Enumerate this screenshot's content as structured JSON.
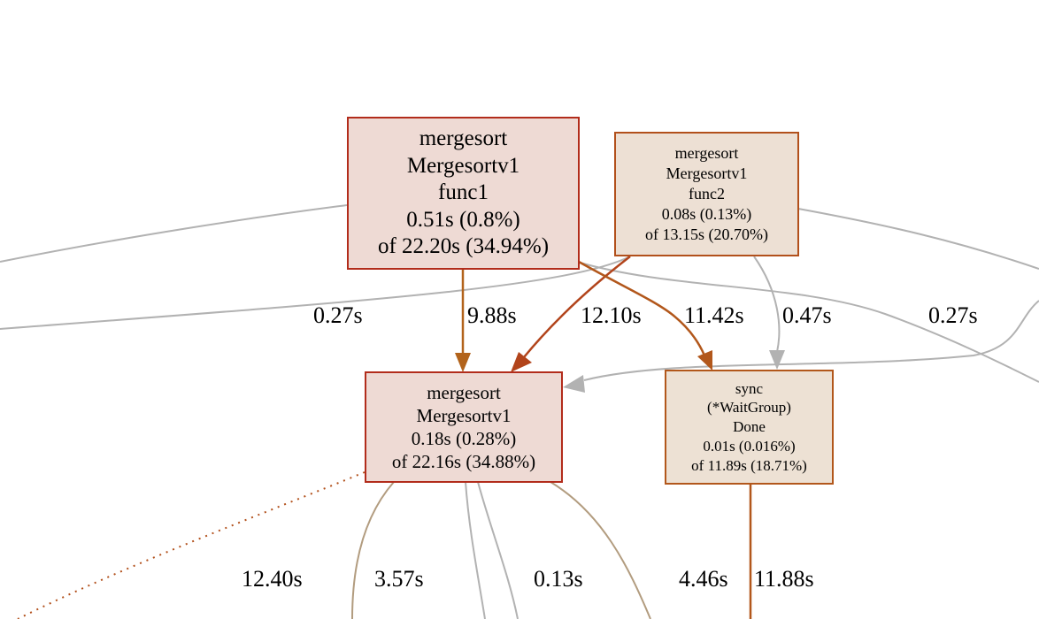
{
  "nodes": {
    "func1": {
      "lines": [
        "mergesort",
        "Mergesortv1",
        "func1",
        "0.51s (0.8%)",
        "of 22.20s (34.94%)"
      ],
      "fill": "#eedad4",
      "stroke": "#b22c1b"
    },
    "func2": {
      "lines": [
        "mergesort",
        "Mergesortv1",
        "func2",
        "0.08s (0.13%)",
        "of 13.15s (20.70%)"
      ],
      "fill": "#ede0d4",
      "stroke": "#b2501b"
    },
    "mergesortv1": {
      "lines": [
        "mergesort",
        "Mergesortv1",
        "0.18s (0.28%)",
        "of 22.16s (34.88%)"
      ],
      "fill": "#eedad4",
      "stroke": "#b22c1b"
    },
    "waitgroup": {
      "lines": [
        "sync",
        "(*WaitGroup)",
        "Done",
        "0.01s (0.016%)",
        "of 11.89s (18.71%)"
      ],
      "fill": "#ede1d4",
      "stroke": "#b2571b"
    }
  },
  "edge_labels": [
    "0.27s",
    "9.88s",
    "12.10s",
    "11.42s",
    "0.47s",
    "0.27s",
    "12.40s",
    "3.57s",
    "0.13s",
    "4.46s",
    "11.88s"
  ],
  "colors": {
    "grey_edge": "#b2b2b2",
    "orange_edge": "#b2631b",
    "dark_orange_edge": "#b2441b",
    "tan_edge": "#b29c7f"
  }
}
